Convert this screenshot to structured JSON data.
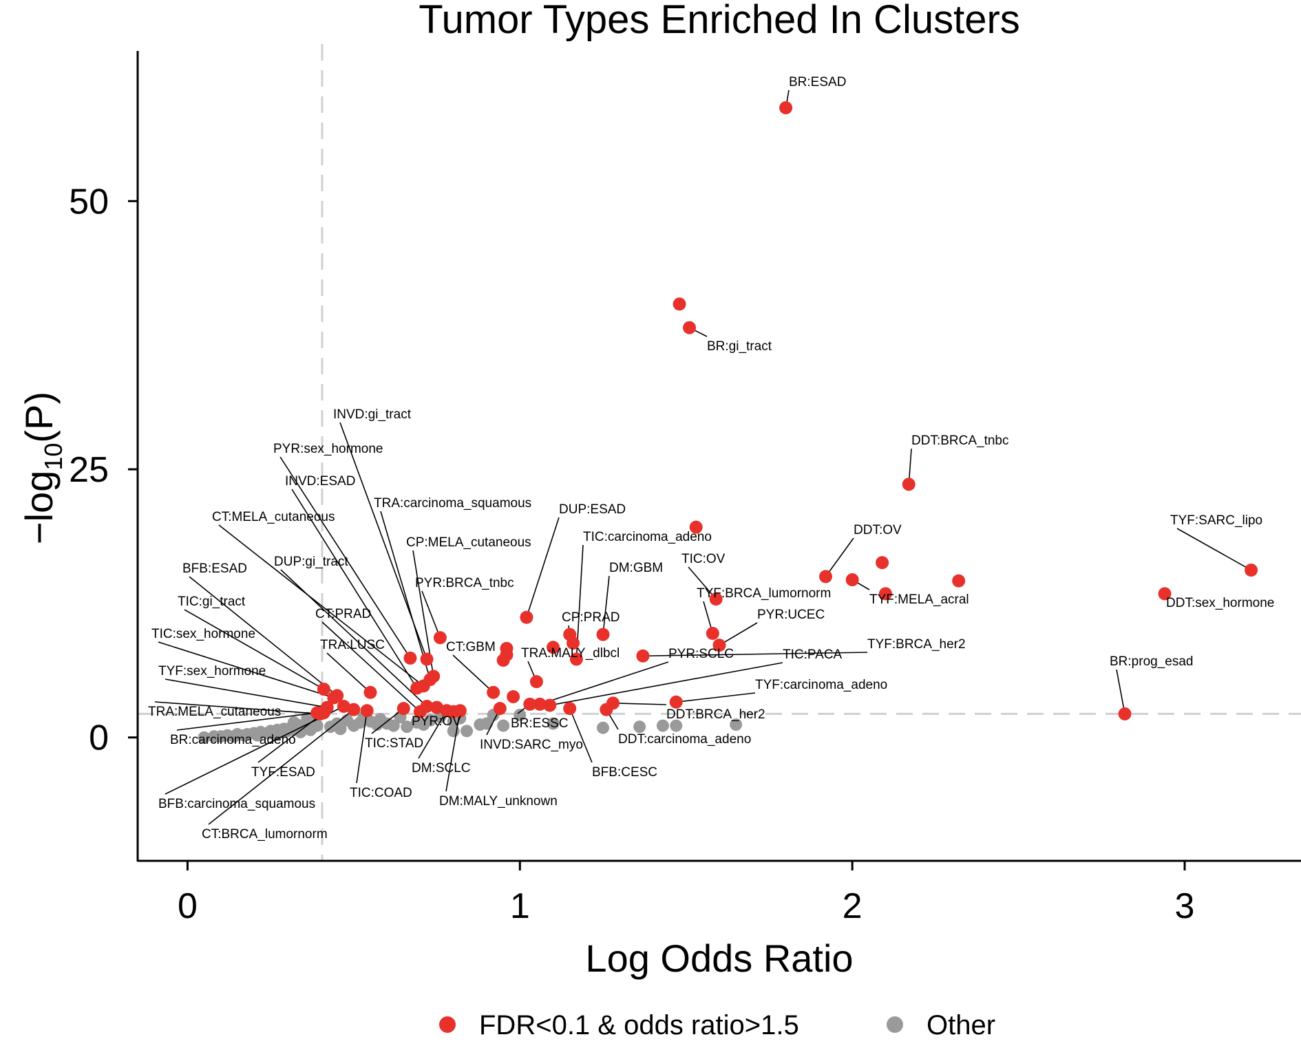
{
  "chart_data": {
    "type": "scatter",
    "title": "Tumor Types Enriched In Clusters",
    "xlabel": "Log Odds Ratio",
    "ylabel_main": "−log",
    "ylabel_sub": "10",
    "ylabel_tail": "(P)",
    "xlim": [
      -0.15,
      3.35
    ],
    "ylim": [
      -11.5,
      64
    ],
    "x_ticks": [
      {
        "v": 0,
        "label": "0"
      },
      {
        "v": 1,
        "label": "1"
      },
      {
        "v": 2,
        "label": "2"
      },
      {
        "v": 3,
        "label": "3"
      }
    ],
    "y_ticks": [
      {
        "v": 0,
        "label": "0"
      },
      {
        "v": 25,
        "label": "25"
      },
      {
        "v": 50,
        "label": "50"
      }
    ],
    "threshold_x": 0.405,
    "threshold_y": 2.2,
    "grid": false,
    "legend_position": "bottom",
    "series": [
      {
        "name": "FDR<0.1 & odds ratio>1.5",
        "color": "#e8312a",
        "points": [
          {
            "x": 1.8,
            "y": 58.7,
            "label": "BR:ESAD"
          },
          {
            "x": 1.48,
            "y": 40.4,
            "label": ""
          },
          {
            "x": 1.51,
            "y": 38.2,
            "label": "BR:gi_tract"
          },
          {
            "x": 2.17,
            "y": 23.6,
            "label": "DDT:BRCA_tnbc"
          },
          {
            "x": 3.2,
            "y": 15.6,
            "label": "TYF:SARC_lipo"
          },
          {
            "x": 2.94,
            "y": 13.4,
            "label": "DDT:sex_hormone"
          },
          {
            "x": 2.82,
            "y": 2.2,
            "label": "BR:prog_esad"
          },
          {
            "x": 1.53,
            "y": 19.6,
            "label": ""
          },
          {
            "x": 1.92,
            "y": 15.0,
            "label": "DDT:OV"
          },
          {
            "x": 2.09,
            "y": 16.3,
            "label": ""
          },
          {
            "x": 2.0,
            "y": 14.7,
            "label": "TYF:MELA_acral"
          },
          {
            "x": 2.1,
            "y": 13.4,
            "label": ""
          },
          {
            "x": 2.32,
            "y": 14.6,
            "label": ""
          },
          {
            "x": 1.59,
            "y": 12.9,
            "label": "TIC:OV"
          },
          {
            "x": 1.58,
            "y": 9.7,
            "label": "TYF:BRCA_lumornorm"
          },
          {
            "x": 1.6,
            "y": 8.6,
            "label": "PYR:UCEC"
          },
          {
            "x": 1.37,
            "y": 7.6,
            "label": "TYF:BRCA_her2"
          },
          {
            "x": 1.25,
            "y": 9.6,
            "label": "DM:GBM"
          },
          {
            "x": 1.15,
            "y": 9.6,
            "label": "CP:PRAD"
          },
          {
            "x": 1.16,
            "y": 8.8,
            "label": ""
          },
          {
            "x": 1.17,
            "y": 7.3,
            "label": "TIC:carcinoma_adeno"
          },
          {
            "x": 1.1,
            "y": 8.4,
            "label": ""
          },
          {
            "x": 1.02,
            "y": 11.2,
            "label": "DUP:ESAD"
          },
          {
            "x": 0.96,
            "y": 8.3,
            "label": ""
          },
          {
            "x": 0.96,
            "y": 7.7,
            "label": ""
          },
          {
            "x": 0.95,
            "y": 7.2,
            "label": ""
          },
          {
            "x": 1.47,
            "y": 3.3,
            "label": "TYF:carcinoma_adeno"
          },
          {
            "x": 1.28,
            "y": 3.2,
            "label": "DDT:BRCA_her2"
          },
          {
            "x": 1.26,
            "y": 2.6,
            "label": "DDT:carcinoma_adeno"
          },
          {
            "x": 1.15,
            "y": 2.7,
            "label": "BFB:CESC"
          },
          {
            "x": 1.09,
            "y": 3.0,
            "label": "TIC:PACA"
          },
          {
            "x": 1.06,
            "y": 3.1,
            "label": "PYR:SCLC"
          },
          {
            "x": 1.03,
            "y": 3.1,
            "label": "BR:ESSC"
          },
          {
            "x": 1.05,
            "y": 5.2,
            "label": "TRA:MALY_dlbcl"
          },
          {
            "x": 0.98,
            "y": 3.8,
            "label": ""
          },
          {
            "x": 0.92,
            "y": 4.2,
            "label": "CT:GBM"
          },
          {
            "x": 0.94,
            "y": 2.7,
            "label": "INVD:SARC_myo"
          },
          {
            "x": 0.76,
            "y": 9.3,
            "label": "PYR:BRCA_tnbc"
          },
          {
            "x": 0.74,
            "y": 5.7,
            "label": "CP:MELA_cutaneous"
          },
          {
            "x": 0.73,
            "y": 5.4,
            "label": "TRA:carcinoma_squamous"
          },
          {
            "x": 0.72,
            "y": 7.3,
            "label": "INVD:gi_tract"
          },
          {
            "x": 0.67,
            "y": 7.4,
            "label": "PYR:sex_hormone"
          },
          {
            "x": 0.69,
            "y": 4.6,
            "label": "INVD:ESAD"
          },
          {
            "x": 0.71,
            "y": 4.8,
            "label": "CT:MELA_cutaneous"
          },
          {
            "x": 0.72,
            "y": 2.9,
            "label": "DUP:gi_tract"
          },
          {
            "x": 0.7,
            "y": 2.4,
            "label": "CT:PRAD"
          },
          {
            "x": 0.75,
            "y": 2.8,
            "label": "PYR:OV"
          },
          {
            "x": 0.78,
            "y": 2.5,
            "label": "DM:SCLC"
          },
          {
            "x": 0.8,
            "y": 2.4,
            "label": ""
          },
          {
            "x": 0.82,
            "y": 2.5,
            "label": "DM:MALY_unknown"
          },
          {
            "x": 0.65,
            "y": 2.7,
            "label": "TIC:STAD"
          },
          {
            "x": 0.55,
            "y": 4.2,
            "label": "TRA:LUSC"
          },
          {
            "x": 0.54,
            "y": 2.5,
            "label": "TIC:COAD"
          },
          {
            "x": 0.5,
            "y": 2.6,
            "label": "CT:BRCA_lumornorm"
          },
          {
            "x": 0.47,
            "y": 2.9,
            "label": "BFB:carcinoma_squamous"
          },
          {
            "x": 0.45,
            "y": 3.9,
            "label": "BFB:ESAD"
          },
          {
            "x": 0.41,
            "y": 4.5,
            "label": "TIC:gi_tract"
          },
          {
            "x": 0.44,
            "y": 3.7,
            "label": "TIC:sex_hormone"
          },
          {
            "x": 0.42,
            "y": 2.8,
            "label": "TYF:sex_hormone"
          },
          {
            "x": 0.41,
            "y": 2.3,
            "label": "TYF:ESAD"
          },
          {
            "x": 0.39,
            "y": 2.3,
            "label": "BR:carcinoma_adeno"
          },
          {
            "x": 0.4,
            "y": 2.2,
            "label": "TRA:MELA_cutaneous"
          }
        ]
      },
      {
        "name": "Other",
        "color": "#9a9a9a",
        "points": [
          {
            "x": 0.05,
            "y": 0.0
          },
          {
            "x": 0.08,
            "y": 0.1
          },
          {
            "x": 0.1,
            "y": 0.1
          },
          {
            "x": 0.12,
            "y": 0.2
          },
          {
            "x": 0.14,
            "y": 0.1
          },
          {
            "x": 0.15,
            "y": 0.3
          },
          {
            "x": 0.17,
            "y": 0.2
          },
          {
            "x": 0.18,
            "y": 0.3
          },
          {
            "x": 0.2,
            "y": 0.4
          },
          {
            "x": 0.21,
            "y": 0.2
          },
          {
            "x": 0.22,
            "y": 0.5
          },
          {
            "x": 0.24,
            "y": 0.4
          },
          {
            "x": 0.25,
            "y": 0.6
          },
          {
            "x": 0.26,
            "y": 0.3
          },
          {
            "x": 0.27,
            "y": 0.7
          },
          {
            "x": 0.28,
            "y": 0.5
          },
          {
            "x": 0.29,
            "y": 0.8
          },
          {
            "x": 0.3,
            "y": 0.6
          },
          {
            "x": 0.31,
            "y": 0.9
          },
          {
            "x": 0.32,
            "y": 0.7
          },
          {
            "x": 0.33,
            "y": 1.2
          },
          {
            "x": 0.34,
            "y": 0.5
          },
          {
            "x": 0.35,
            "y": 0.9
          },
          {
            "x": 0.36,
            "y": 1.0
          },
          {
            "x": 0.37,
            "y": 0.7
          },
          {
            "x": 0.38,
            "y": 1.5
          },
          {
            "x": 0.39,
            "y": 1.1
          },
          {
            "x": 0.36,
            "y": 1.8
          },
          {
            "x": 0.32,
            "y": 1.4
          },
          {
            "x": 0.43,
            "y": 1.0
          },
          {
            "x": 0.45,
            "y": 1.3
          },
          {
            "x": 0.46,
            "y": 0.8
          },
          {
            "x": 0.48,
            "y": 1.6
          },
          {
            "x": 0.5,
            "y": 1.1
          },
          {
            "x": 0.52,
            "y": 1.4
          },
          {
            "x": 0.53,
            "y": 1.9
          },
          {
            "x": 0.55,
            "y": 1.5
          },
          {
            "x": 0.57,
            "y": 1.2
          },
          {
            "x": 0.58,
            "y": 1.7
          },
          {
            "x": 0.6,
            "y": 1.3
          },
          {
            "x": 0.62,
            "y": 1.1
          },
          {
            "x": 0.64,
            "y": 1.9
          },
          {
            "x": 0.66,
            "y": 1.0
          },
          {
            "x": 0.69,
            "y": 1.4
          },
          {
            "x": 0.71,
            "y": 1.2
          },
          {
            "x": 0.73,
            "y": 1.6
          },
          {
            "x": 0.76,
            "y": 1.9
          },
          {
            "x": 0.8,
            "y": 1.5
          },
          {
            "x": 0.8,
            "y": 0.6
          },
          {
            "x": 0.84,
            "y": 0.6
          },
          {
            "x": 0.82,
            "y": 1.8
          },
          {
            "x": 0.88,
            "y": 1.2
          },
          {
            "x": 0.9,
            "y": 1.3
          },
          {
            "x": 0.92,
            "y": 2.1
          },
          {
            "x": 0.95,
            "y": 1.1
          },
          {
            "x": 1.0,
            "y": 2.1
          },
          {
            "x": 1.1,
            "y": 1.3
          },
          {
            "x": 1.25,
            "y": 0.9
          },
          {
            "x": 1.36,
            "y": 1.0
          },
          {
            "x": 1.43,
            "y": 1.1
          },
          {
            "x": 1.47,
            "y": 1.1
          },
          {
            "x": 1.65,
            "y": 1.2
          }
        ]
      }
    ]
  }
}
